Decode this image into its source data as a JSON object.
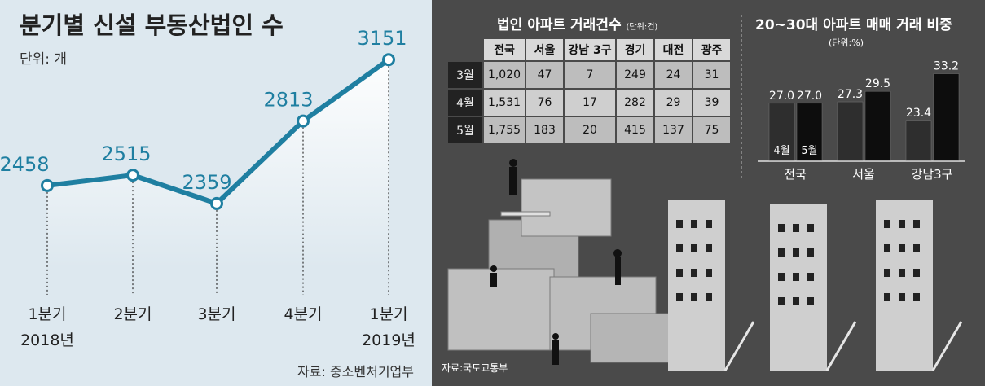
{
  "left": {
    "title": "분기별 신설 부동산법인 수",
    "unit": "단위: 개",
    "source": "자료: 중소벤처기업부"
  },
  "right": {
    "table_title": "법인 아파트 거래건수",
    "table_unit": "(단위:건)",
    "bar_title": "20~30대 아파트 매매 거래 비중",
    "bar_unit": "(단위:%)",
    "source": "자료:국토교통부"
  },
  "chart_data": [
    {
      "type": "line",
      "title": "분기별 신설 부동산법인 수",
      "ylabel": "단위: 개",
      "categories": [
        "1분기\n2018년",
        "2분기",
        "3분기",
        "4분기",
        "1분기\n2019년"
      ],
      "x_top": [
        "1분기",
        "2분기",
        "3분기",
        "4분기",
        "1분기"
      ],
      "x_bottom": [
        "2018년",
        "",
        "",
        "",
        "2019년"
      ],
      "values": [
        2458,
        2515,
        2359,
        2813,
        3151
      ],
      "value_labels": [
        "2458",
        "2515",
        "2359",
        "2813",
        "3151"
      ],
      "ylim": [
        2000,
        3300
      ],
      "color": "#1f7fa1",
      "grid": false
    },
    {
      "type": "table",
      "title": "법인 아파트 거래건수",
      "unit": "(단위:건)",
      "columns": [
        "",
        "전국",
        "서울",
        "강남 3구",
        "경기",
        "대전",
        "광주"
      ],
      "rows": [
        [
          "3월",
          "1,020",
          "47",
          "7",
          "249",
          "24",
          "31"
        ],
        [
          "4월",
          "1,531",
          "76",
          "17",
          "282",
          "29",
          "39"
        ],
        [
          "5월",
          "1,755",
          "183",
          "20",
          "415",
          "137",
          "75"
        ]
      ]
    },
    {
      "type": "bar",
      "title": "20~30대 아파트 매매 거래 비중",
      "unit": "(단위:%)",
      "categories": [
        "전국",
        "서울",
        "강남3구"
      ],
      "series": [
        {
          "name": "4월",
          "values": [
            27.0,
            27.3,
            23.4
          ],
          "labels": [
            "27.0",
            "27.3",
            "23.4"
          ],
          "color": "#2e2e2e"
        },
        {
          "name": "5월",
          "values": [
            27.0,
            29.5,
            33.2
          ],
          "labels": [
            "27.0",
            "29.5",
            "33.2"
          ],
          "color": "#0d0d0d"
        }
      ],
      "ylim": [
        15,
        35
      ]
    }
  ]
}
